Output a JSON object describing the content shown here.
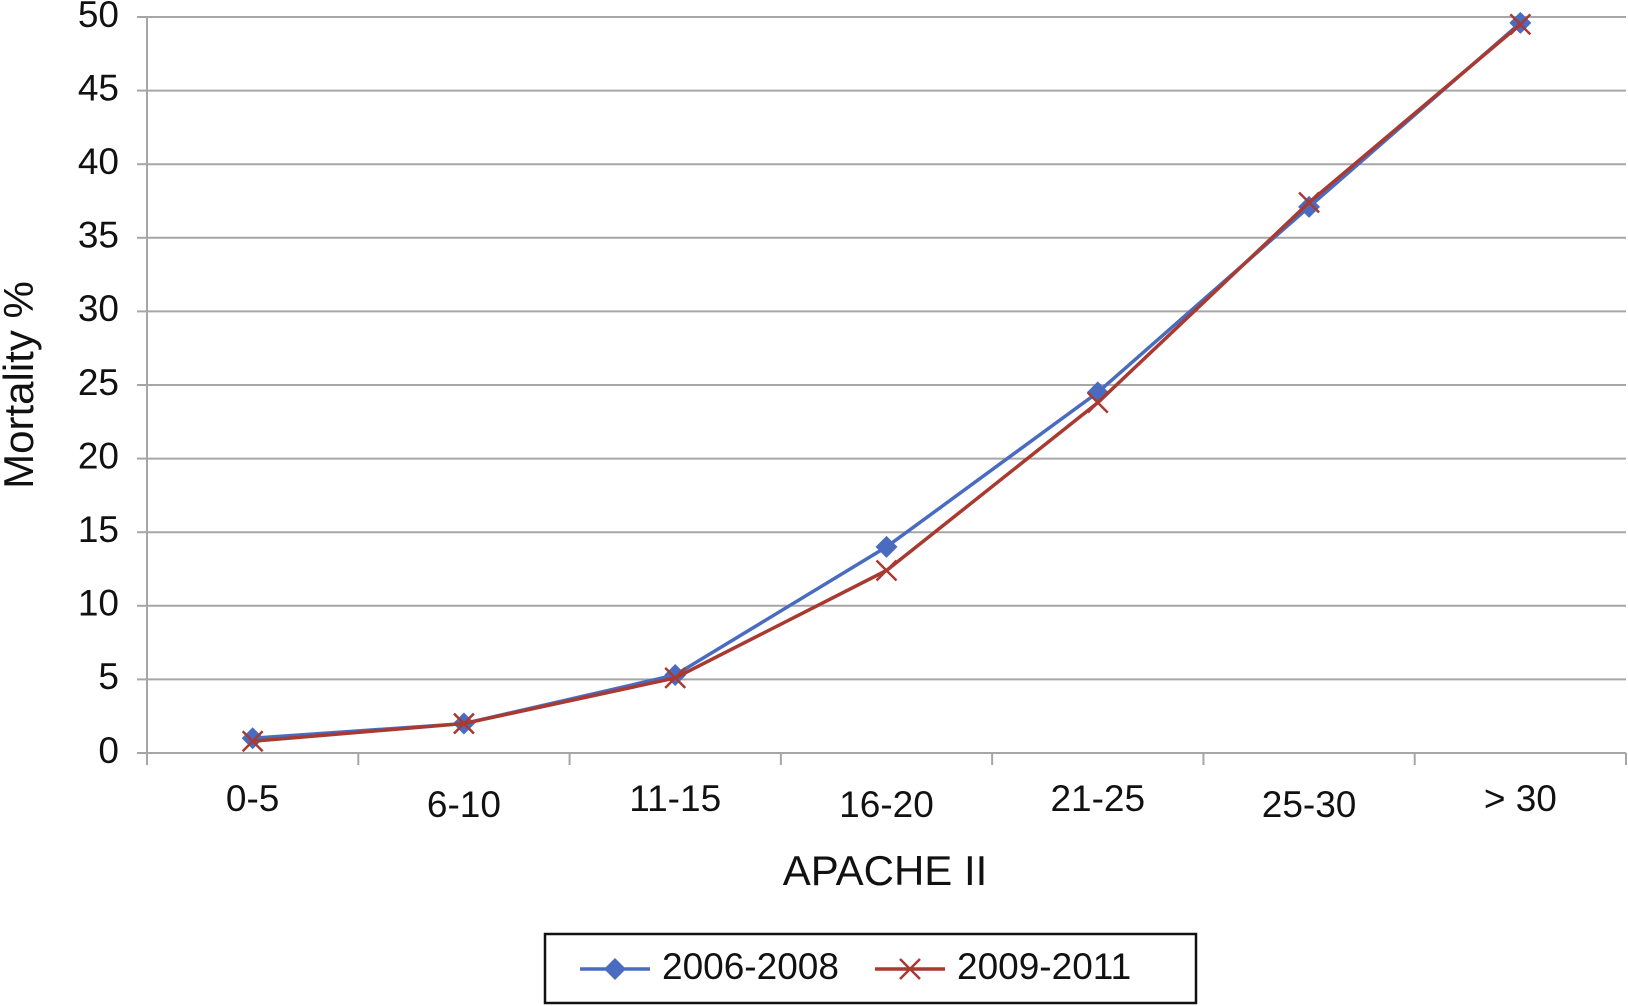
{
  "chart_data": {
    "type": "line",
    "x_label": "APACHE II",
    "y_label": "Mortality %",
    "categories": [
      "0-5",
      "6-10",
      "11-15",
      "16-20",
      "21-25",
      "25-30",
      "> 30"
    ],
    "series": [
      {
        "name": "2006-2008",
        "color": "#4a6cc0",
        "marker": "diamond",
        "values": [
          1.0,
          2.0,
          5.3,
          14.0,
          24.5,
          37.1,
          49.6
        ]
      },
      {
        "name": "2009-2011",
        "color": "#a83a32",
        "marker": "x",
        "values": [
          0.8,
          2.0,
          5.1,
          12.4,
          23.8,
          37.4,
          49.5
        ]
      }
    ],
    "ylim": [
      0,
      50
    ],
    "yticks": [
      0,
      5,
      10,
      15,
      20,
      25,
      30,
      35,
      40,
      45,
      50
    ],
    "grid": true,
    "legend": "bottom"
  }
}
